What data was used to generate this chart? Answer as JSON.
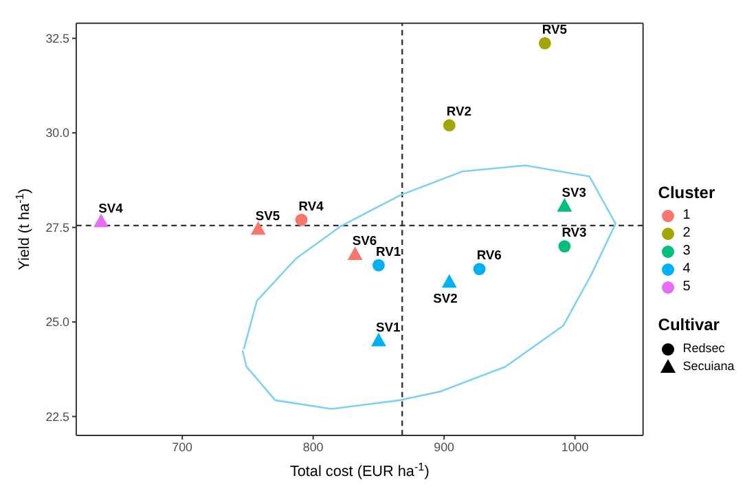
{
  "chart_data": {
    "type": "scatter",
    "xlabel": "Total cost (EUR ha$^{-1}$)",
    "ylabel": "Yield (t ha$^{-1}$)",
    "legend_title": "Cluster",
    "annotations": [
      "Cultivar"
    ],
    "xlim": [
      619,
      1052
    ],
    "ylim": [
      22.0,
      32.9
    ],
    "xticks": [
      700,
      800,
      900,
      1000
    ],
    "yticks": [
      22.5,
      {
        "value": 25,
        "label": "25.0"
      },
      27.5,
      {
        "value": 30,
        "label": "30.0"
      },
      32.5
    ],
    "grid": false,
    "legend": "right",
    "ref_lines": [
      {
        "axis": "x",
        "value": 868,
        "line_style": "dashed",
        "color": "#333333"
      },
      {
        "axis": "y",
        "value": 27.55,
        "line_style": "dashed",
        "color": "#333333"
      }
    ],
    "series": [
      {
        "name": "1",
        "color": "#f8766d",
        "marker": "circle",
        "x": [
          791
        ],
        "values": [
          27.7
        ],
        "value_labels": [
          "RV4"
        ]
      },
      {
        "color": "#f8766d",
        "marker": "triangle",
        "x": [
          758,
          832
        ],
        "values": [
          27.45,
          26.78
        ],
        "value_labels": [
          "SV5",
          "SV6"
        ]
      },
      {
        "name": "2",
        "color": "#a3a500",
        "marker": "circle",
        "x": [
          904,
          977
        ],
        "values": [
          30.2,
          32.37
        ],
        "value_labels": [
          "RV2",
          "RV5"
        ]
      },
      {
        "name": "3",
        "color": "#00bf7d",
        "marker": "triangle",
        "x": [
          992
        ],
        "values": [
          28.06
        ],
        "value_labels": [
          "SV3"
        ]
      },
      {
        "color": "#00bf7d",
        "marker": "circle",
        "x": [
          992
        ],
        "values": [
          27.0
        ],
        "value_labels": [
          "RV3"
        ]
      },
      {
        "name": "4",
        "color": "#00b0f6",
        "marker": "circle",
        "x": [
          850,
          927
        ],
        "values": [
          26.5,
          26.4
        ],
        "value_labels": [
          "RV1",
          "RV6"
        ]
      },
      {
        "color": "#00b0f6",
        "marker": "triangle",
        "x": [
          850,
          904
        ],
        "values": [
          24.5,
          26.05
        ],
        "value_labels": [
          "SV1",
          "SV2"
        ]
      },
      {
        "name": "5",
        "color": "#e76bf3",
        "marker": "triangle",
        "x": [
          638
        ],
        "values": [
          27.65
        ],
        "value_labels": [
          "SV4"
        ]
      },
      {
        "type": "line",
        "color": "#7fd0f5",
        "marker": "none",
        "x": [
          747,
          757,
          787,
          821,
          867,
          914,
          962,
          1011,
          1031,
          1012,
          991,
          947,
          897,
          866,
          814,
          771,
          749,
          746
        ],
        "values": [
          24.28,
          25.56,
          26.68,
          27.53,
          28.36,
          28.98,
          29.14,
          28.85,
          27.6,
          26.22,
          24.9,
          23.82,
          23.16,
          22.93,
          22.7,
          22.93,
          23.82,
          24.25
        ]
      },
      {
        "name": "Redsec",
        "color": "#000000",
        "marker": "circle"
      },
      {
        "name": "Secuiana",
        "color": "#000000",
        "marker": "triangle"
      }
    ]
  }
}
